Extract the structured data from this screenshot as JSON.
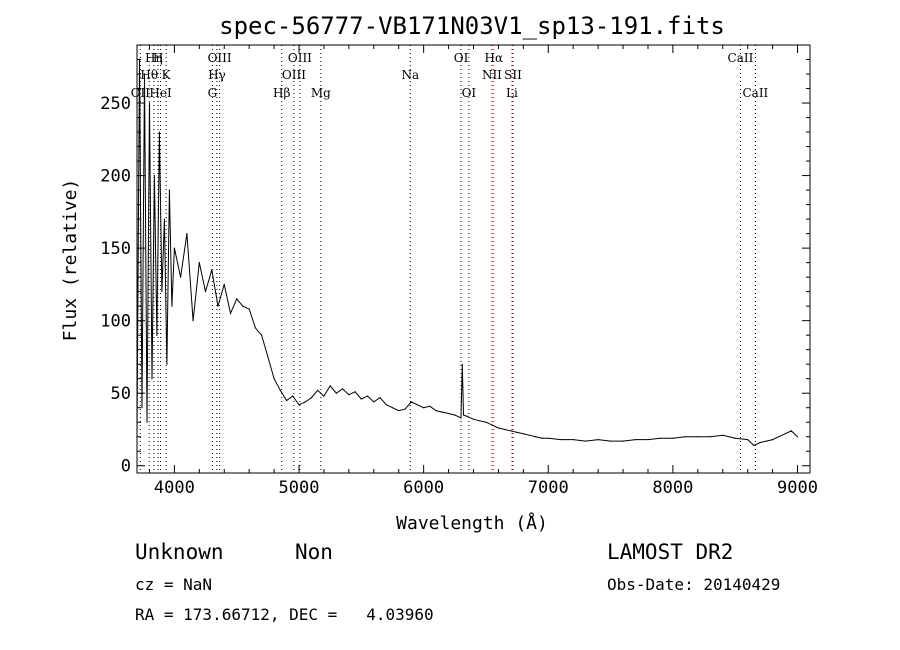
{
  "chart_data": {
    "type": "line",
    "title": "spec-56777-VB171N03V1_sp13-191.fits",
    "xlabel": "Wavelength (Å)",
    "ylabel": "Flux (relative)",
    "xlim": [
      3700,
      9100
    ],
    "ylim": [
      -5,
      290
    ],
    "xticks": [
      4000,
      5000,
      6000,
      7000,
      8000,
      9000
    ],
    "yticks": [
      0,
      50,
      100,
      150,
      200,
      250
    ],
    "grid": false,
    "series": [
      {
        "color": "#000000",
        "x": [
          3700,
          3720,
          3740,
          3760,
          3780,
          3800,
          3820,
          3840,
          3860,
          3880,
          3900,
          3920,
          3940,
          3960,
          3980,
          4000,
          4050,
          4100,
          4150,
          4200,
          4250,
          4300,
          4350,
          4400,
          4450,
          4500,
          4550,
          4600,
          4650,
          4700,
          4750,
          4800,
          4850,
          4900,
          4950,
          5000,
          5050,
          5100,
          5150,
          5200,
          5250,
          5300,
          5350,
          5400,
          5450,
          5500,
          5550,
          5600,
          5650,
          5700,
          5750,
          5800,
          5850,
          5900,
          5950,
          6000,
          6050,
          6100,
          6150,
          6200,
          6250,
          6300,
          6310,
          6320,
          6350,
          6400,
          6450,
          6500,
          6550,
          6600,
          6650,
          6700,
          6750,
          6800,
          6850,
          6900,
          6950,
          7000,
          7100,
          7200,
          7300,
          7400,
          7500,
          7600,
          7700,
          7800,
          7900,
          8000,
          8100,
          8200,
          8300,
          8400,
          8500,
          8600,
          8650,
          8700,
          8750,
          8800,
          8850,
          8900,
          8950,
          9000
        ],
        "y": [
          20,
          280,
          40,
          270,
          30,
          250,
          60,
          200,
          90,
          230,
          120,
          170,
          70,
          190,
          110,
          150,
          130,
          160,
          100,
          140,
          120,
          135,
          110,
          125,
          105,
          115,
          110,
          108,
          95,
          90,
          75,
          60,
          52,
          45,
          48,
          42,
          44,
          47,
          52,
          48,
          55,
          50,
          53,
          49,
          51,
          46,
          48,
          44,
          47,
          42,
          40,
          38,
          39,
          44,
          42,
          40,
          41,
          38,
          37,
          36,
          35,
          33,
          70,
          35,
          34,
          32,
          31,
          30,
          28,
          26,
          25,
          24,
          23,
          22,
          21,
          20,
          19,
          19,
          18,
          18,
          17,
          18,
          17,
          17,
          18,
          18,
          19,
          19,
          20,
          20,
          20,
          21,
          19,
          18,
          14,
          16,
          17,
          18,
          20,
          22,
          24,
          20
        ]
      }
    ],
    "line_marks": [
      {
        "label": "OII",
        "x": 3727,
        "row": 3,
        "color": "#000000"
      },
      {
        "label": "Hη",
        "x": 3835,
        "row": 1,
        "color": "#000000"
      },
      {
        "label": "H",
        "x": 3869,
        "row": 1,
        "color": "#000000"
      },
      {
        "label": "Hθ",
        "x": 3798,
        "row": 2,
        "color": "#000000"
      },
      {
        "label": "K",
        "x": 3934,
        "row": 2,
        "color": "#000000"
      },
      {
        "label": "HeI",
        "x": 3889,
        "row": 3,
        "color": "#000000"
      },
      {
        "label": "OIII",
        "x": 4363,
        "row": 1,
        "color": "#000000"
      },
      {
        "label": "Hγ",
        "x": 4341,
        "row": 2,
        "color": "#000000"
      },
      {
        "label": "G",
        "x": 4305,
        "row": 3,
        "color": "#000000"
      },
      {
        "label": "Hβ",
        "x": 4861,
        "row": 3,
        "color": "#000000"
      },
      {
        "label": "OIII",
        "x": 5007,
        "row": 1,
        "color": "#000000"
      },
      {
        "label": "OIII",
        "x": 4959,
        "row": 2,
        "color": "#000000"
      },
      {
        "label": "Mg",
        "x": 5175,
        "row": 3,
        "color": "#000000"
      },
      {
        "label": "Na",
        "x": 5893,
        "row": 2,
        "color": "#000000"
      },
      {
        "label": "OI",
        "x": 6300,
        "row": 1,
        "color": "#000000"
      },
      {
        "label": "OI",
        "x": 6363,
        "row": 3,
        "color": "#000000"
      },
      {
        "label": "Hα",
        "x": 6563,
        "row": 1,
        "color": "#ff0000"
      },
      {
        "label": "NII",
        "x": 6548,
        "row": 2,
        "color": "#000000"
      },
      {
        "label": "SII",
        "x": 6717,
        "row": 2,
        "color": "#000000"
      },
      {
        "label": "Li",
        "x": 6708,
        "row": 3,
        "color": "#ff0000"
      },
      {
        "label": "CaII",
        "x": 8542,
        "row": 1,
        "color": "#000000"
      },
      {
        "label": "CaII",
        "x": 8662,
        "row": 3,
        "color": "#000000"
      }
    ]
  },
  "info": {
    "class": "Unknown",
    "subclass": "Non",
    "survey": "LAMOST DR2",
    "cz": "cz = NaN",
    "obs_date": "Obs-Date: 20140429",
    "coords": "RA = 173.66712, DEC =   4.03960"
  }
}
